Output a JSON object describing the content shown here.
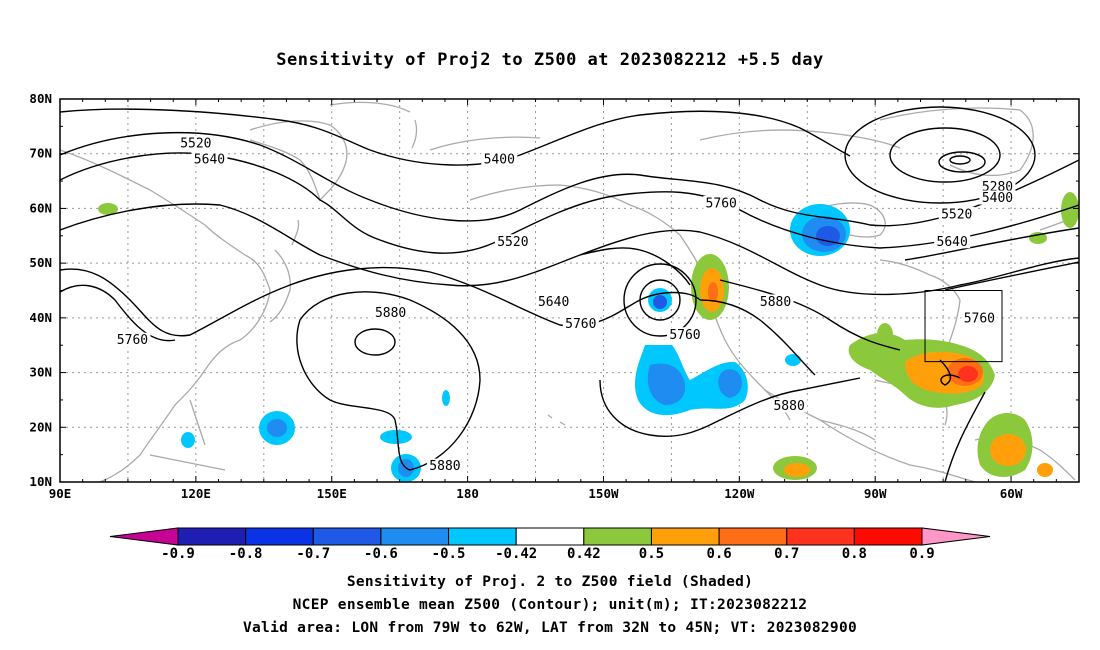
{
  "title": "Sensitivity of Proj2 to Z500 at 2023082212 +5.5 day",
  "map": {
    "lon_labels": [
      "90E",
      "120E",
      "150E",
      "180",
      "150W",
      "120W",
      "90W",
      "60W"
    ],
    "lat_labels": [
      "80N",
      "70N",
      "60N",
      "50N",
      "40N",
      "30N",
      "20N",
      "10N"
    ],
    "contour_labels": [
      {
        "text": "5520",
        "lon": 120,
        "lat": 72
      },
      {
        "text": "5400",
        "lon": 187,
        "lat": 69
      },
      {
        "text": "5640",
        "lon": 123,
        "lat": 69
      },
      {
        "text": "5280",
        "lon": 297,
        "lat": 64
      },
      {
        "text": "5400",
        "lon": 297,
        "lat": 62
      },
      {
        "text": "5760",
        "lon": 236,
        "lat": 61
      },
      {
        "text": "5520",
        "lon": 288,
        "lat": 59
      },
      {
        "text": "5520",
        "lon": 190,
        "lat": 54
      },
      {
        "text": "5640",
        "lon": 287,
        "lat": 54
      },
      {
        "text": "5640",
        "lon": 199,
        "lat": 43
      },
      {
        "text": "5880",
        "lon": 248,
        "lat": 43
      },
      {
        "text": "5880",
        "lon": 163,
        "lat": 41
      },
      {
        "text": "5760",
        "lon": 205,
        "lat": 39
      },
      {
        "text": "5760",
        "lon": 293,
        "lat": 40
      },
      {
        "text": "5760",
        "lon": 106,
        "lat": 36
      },
      {
        "text": "5760",
        "lon": 228,
        "lat": 37
      },
      {
        "text": "5880",
        "lon": 251,
        "lat": 24
      },
      {
        "text": "5880",
        "lon": 175,
        "lat": 13
      }
    ],
    "valid_box": {
      "lon_from": 281,
      "lon_to": 298,
      "lat_from": 32,
      "lat_to": 45
    }
  },
  "colorbar": {
    "labels": [
      "-0.9",
      "-0.8",
      "-0.7",
      "-0.6",
      "-0.5",
      "-0.42",
      "0.42",
      "0.5",
      "0.6",
      "0.7",
      "0.8",
      "0.9"
    ],
    "colors": [
      "#c70394",
      "#1e1eb4",
      "#0a32e6",
      "#1e5ae6",
      "#1e8cf0",
      "#00c8ff",
      "#ffffff",
      "#8cc83c",
      "#ffa00a",
      "#ff6e14",
      "#ff321e",
      "#ff0a00",
      "#ff96c8"
    ]
  },
  "captions": {
    "line1": "Sensitivity of Proj. 2 to Z500 field (Shaded)",
    "line2": "NCEP ensemble mean Z500 (Contour); unit(m); IT:2023082212",
    "line3": "Valid area: LON from 79W to 62W, LAT from 32N to 45N; VT: 2023082900"
  }
}
